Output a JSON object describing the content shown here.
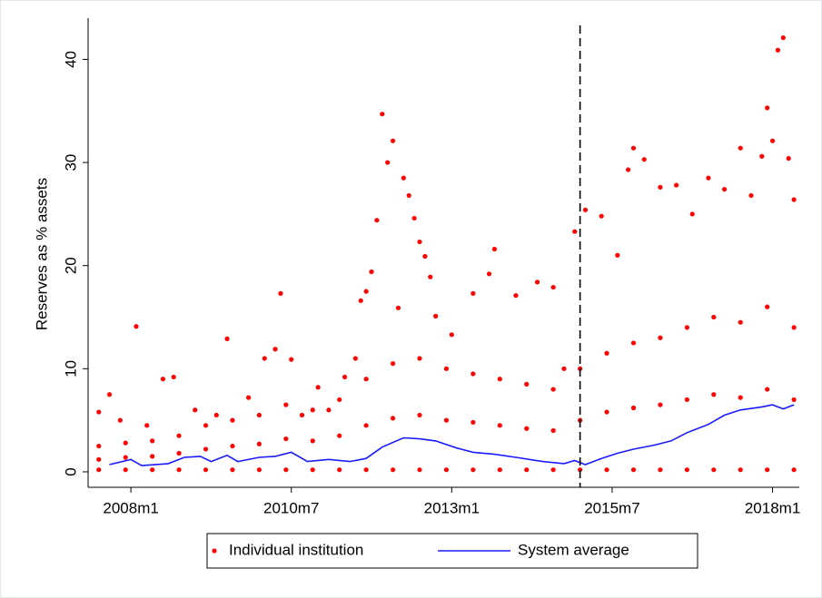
{
  "chart_data": {
    "type": "scatter",
    "ylabel": "Reserves as % assets",
    "xlim": [
      568,
      701
    ],
    "ylim": [
      -1.5,
      44
    ],
    "xticks": [
      {
        "value": 576,
        "label": "2008m1"
      },
      {
        "value": 606,
        "label": "2010m7"
      },
      {
        "value": 636,
        "label": "2013m1"
      },
      {
        "value": 666,
        "label": "2015m7"
      },
      {
        "value": 696,
        "label": "2018m1"
      }
    ],
    "yticks": [
      0,
      10,
      20,
      30,
      40
    ],
    "reference_line_x": 660,
    "series": [
      {
        "name": "Individual institution",
        "color": "#ff0000",
        "x": [
          570,
          572,
          574,
          577,
          579,
          582,
          584,
          588,
          592,
          594,
          598,
          601,
          603,
          604,
          606,
          608,
          611,
          613,
          616,
          618,
          619,
          620,
          621,
          622,
          623,
          624,
          625,
          626,
          627,
          628,
          629,
          630,
          631,
          632,
          633,
          636,
          640,
          643,
          644,
          648,
          652,
          655,
          657,
          659,
          661,
          664,
          667,
          669,
          670,
          672,
          675,
          678,
          681,
          684,
          687,
          690,
          692,
          694,
          695,
          696,
          697,
          698,
          699,
          700,
          570,
          575,
          580,
          585,
          590,
          595,
          600,
          605,
          610,
          615,
          620,
          625,
          630,
          635,
          640,
          645,
          650,
          655,
          660,
          665,
          670,
          675,
          680,
          685,
          690,
          695,
          700,
          570,
          575,
          580,
          585,
          590,
          595,
          600,
          605,
          610,
          615,
          620,
          625,
          630,
          635,
          640,
          645,
          650,
          655,
          660,
          665,
          670,
          675,
          680,
          685,
          690,
          695,
          700,
          570,
          575,
          580,
          585,
          590,
          595,
          600,
          605,
          610,
          615,
          620,
          625,
          630,
          635,
          640,
          645,
          650,
          655,
          660,
          665,
          670,
          675,
          680,
          685,
          690,
          695,
          700
        ],
        "values": [
          5.8,
          7.5,
          5.0,
          14.1,
          4.5,
          9.0,
          9.2,
          6.0,
          5.5,
          12.9,
          7.2,
          11.0,
          11.9,
          17.3,
          10.9,
          5.5,
          8.2,
          6.0,
          9.2,
          11.0,
          16.6,
          17.5,
          19.4,
          24.4,
          34.7,
          30.0,
          32.1,
          15.9,
          28.5,
          26.8,
          24.6,
          22.3,
          20.9,
          18.9,
          15.1,
          13.3,
          17.3,
          19.2,
          21.6,
          17.1,
          18.4,
          17.9,
          10.0,
          23.3,
          25.4,
          24.8,
          21.0,
          29.3,
          31.4,
          30.3,
          27.6,
          27.8,
          25.0,
          28.5,
          27.4,
          31.4,
          26.8,
          30.6,
          35.3,
          32.1,
          40.9,
          42.1,
          30.4,
          26.4,
          2.5,
          2.8,
          3.0,
          3.5,
          4.5,
          5.0,
          5.5,
          6.5,
          6.0,
          7.0,
          9.0,
          10.5,
          11.0,
          10.0,
          9.5,
          9.0,
          8.5,
          8.0,
          10.0,
          11.5,
          12.5,
          13.0,
          14.0,
          15.0,
          14.5,
          16.0,
          14.0,
          1.2,
          1.4,
          1.5,
          1.8,
          2.2,
          2.5,
          2.7,
          3.2,
          3.0,
          3.5,
          4.5,
          5.2,
          5.5,
          5.0,
          4.8,
          4.5,
          4.2,
          4.0,
          5.0,
          5.8,
          6.2,
          6.5,
          7.0,
          7.5,
          7.2,
          8.0,
          7.0,
          0.2,
          0.2,
          0.2,
          0.2,
          0.2,
          0.2,
          0.2,
          0.2,
          0.2,
          0.2,
          0.2,
          0.2,
          0.2,
          0.2,
          0.2,
          0.2,
          0.2,
          0.2,
          0.2,
          0.2,
          0.2,
          0.2,
          0.2,
          0.2,
          0.2,
          0.2,
          0.2
        ]
      },
      {
        "name": "System average",
        "color": "#1a1aff",
        "mode": "line",
        "x": [
          572,
          576,
          578,
          583,
          586,
          589,
          591,
          594,
          596,
          600,
          603,
          606,
          609,
          613,
          617,
          620,
          623,
          627,
          630,
          633,
          637,
          640,
          644,
          648,
          653,
          657,
          659,
          661,
          664,
          667,
          670,
          674,
          677,
          680,
          684,
          687,
          690,
          694,
          696,
          698,
          700
        ],
        "values": [
          0.7,
          1.2,
          0.6,
          0.8,
          1.4,
          1.5,
          1.0,
          1.6,
          1.0,
          1.4,
          1.5,
          1.9,
          1.0,
          1.2,
          1.0,
          1.3,
          2.4,
          3.3,
          3.2,
          3.0,
          2.3,
          1.9,
          1.7,
          1.4,
          1.0,
          0.8,
          1.1,
          0.7,
          1.3,
          1.8,
          2.2,
          2.6,
          3.0,
          3.8,
          4.6,
          5.5,
          6.0,
          6.3,
          6.5,
          6.1,
          6.5
        ]
      }
    ]
  }
}
